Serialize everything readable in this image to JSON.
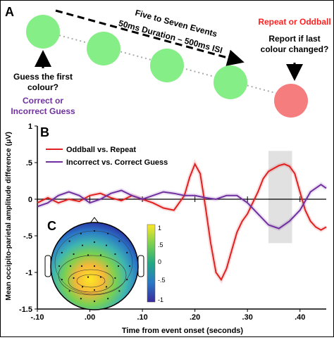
{
  "panel_a": {
    "label": "A",
    "guess_label_line1": "Guess the first",
    "guess_label_line2": "colour?",
    "correct_line1": "Correct or",
    "correct_line2": "Incorrect Guess",
    "events_line1": "Five to Seven Events",
    "events_line2": "50ms Duration – 500ms ISI",
    "repeat_oddball": "Repeat or Oddball",
    "report_line1": "Report if last",
    "report_line2": "colour changed?",
    "colors": {
      "green": "#86ee86",
      "red": "#f57d7d",
      "purple": "#7030a0",
      "red_text": "#ff2020"
    }
  },
  "panel_b": {
    "label": "B",
    "legend": [
      "Oddball vs. Repeat",
      "Incorrect vs. Correct Guess"
    ]
  },
  "panel_c": {
    "label": "C",
    "colorbar_ticks": [
      "1",
      ".5",
      "0",
      "-.5",
      "-1"
    ]
  },
  "chart_data": {
    "type": "line",
    "xlabel": "Time from event onset (seconds)",
    "ylabel": "Mean occipito-parietal amplitude difference (μV)",
    "xlim": [
      -0.1,
      0.45
    ],
    "ylim": [
      -1.5,
      1.0
    ],
    "x_ticks": [
      "-.10",
      ".00",
      ".10",
      ".20",
      ".30",
      ".40"
    ],
    "y_ticks": [
      "1",
      ".5",
      "0",
      "-.5",
      "-1",
      "-1.5"
    ],
    "shaded_window": [
      0.34,
      0.385
    ],
    "series": [
      {
        "name": "Oddball vs. Repeat",
        "color": "#e02020",
        "x": [
          -0.1,
          -0.08,
          -0.06,
          -0.04,
          -0.02,
          0.0,
          0.02,
          0.04,
          0.06,
          0.08,
          0.1,
          0.12,
          0.14,
          0.16,
          0.18,
          0.19,
          0.2,
          0.21,
          0.22,
          0.23,
          0.24,
          0.25,
          0.26,
          0.27,
          0.28,
          0.29,
          0.3,
          0.31,
          0.32,
          0.33,
          0.34,
          0.35,
          0.36,
          0.37,
          0.38,
          0.39,
          0.4,
          0.41,
          0.42,
          0.43,
          0.44,
          0.45
        ],
        "values": [
          -0.05,
          0.02,
          -0.05,
          0.0,
          -0.03,
          0.05,
          0.08,
          0.02,
          -0.02,
          0.05,
          0.0,
          -0.05,
          -0.12,
          -0.15,
          0.05,
          0.3,
          0.48,
          0.35,
          -0.1,
          -0.6,
          -1.0,
          -1.1,
          -0.95,
          -0.7,
          -0.45,
          -0.3,
          -0.2,
          -0.05,
          0.1,
          0.28,
          0.38,
          0.42,
          0.46,
          0.48,
          0.45,
          0.35,
          0.1,
          -0.15,
          -0.3,
          -0.38,
          -0.42,
          -0.38
        ]
      },
      {
        "name": "Incorrect vs. Correct Guess",
        "color": "#7030a0",
        "x": [
          -0.1,
          -0.08,
          -0.06,
          -0.04,
          -0.02,
          0.0,
          0.02,
          0.04,
          0.06,
          0.08,
          0.1,
          0.12,
          0.14,
          0.16,
          0.18,
          0.2,
          0.22,
          0.24,
          0.26,
          0.28,
          0.3,
          0.32,
          0.34,
          0.36,
          0.38,
          0.4,
          0.42,
          0.44,
          0.45
        ],
        "values": [
          -0.1,
          -0.05,
          0.05,
          0.1,
          0.05,
          -0.05,
          0.0,
          0.08,
          0.12,
          0.05,
          0.0,
          0.05,
          0.1,
          0.08,
          0.05,
          0.05,
          0.02,
          0.0,
          0.05,
          0.05,
          -0.05,
          -0.2,
          -0.35,
          -0.4,
          -0.3,
          -0.15,
          0.1,
          0.2,
          0.15
        ]
      }
    ]
  }
}
